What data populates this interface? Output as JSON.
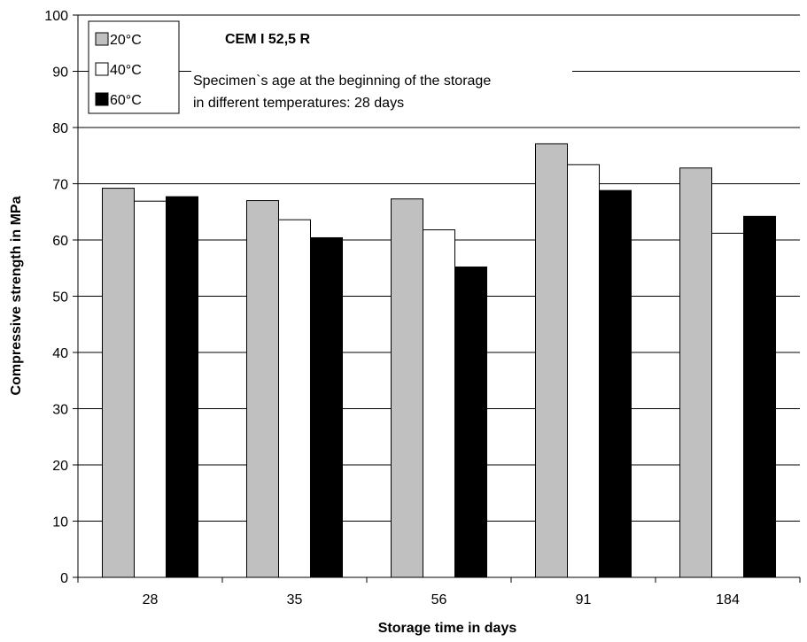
{
  "chart_data": {
    "type": "bar",
    "title": "",
    "xlabel": "Storage time in days",
    "ylabel": "Compressive strength in MPa",
    "ylim": [
      0,
      100
    ],
    "yticks": [
      "0",
      "10",
      "20",
      "30",
      "40",
      "50",
      "60",
      "70",
      "80",
      "90",
      "100"
    ],
    "categories": [
      "28",
      "35",
      "56",
      "91",
      "184"
    ],
    "grid": "horizontal",
    "legend_position": "top-left",
    "series": [
      {
        "name": "20°C",
        "color": "#c0c0c0",
        "values": [
          69.2,
          67.0,
          67.3,
          77.1,
          72.8
        ]
      },
      {
        "name": "40°C",
        "color": "#ffffff",
        "values": [
          66.9,
          63.6,
          61.8,
          73.4,
          61.2
        ]
      },
      {
        "name": "60°C",
        "color": "#000000",
        "values": [
          67.7,
          60.4,
          55.2,
          68.8,
          64.2
        ]
      }
    ],
    "annotations": {
      "cement": "CEM I 52,5 R",
      "line1": "Specimen`s age at the beginning of the storage",
      "line2": "in different temperatures: 28 days"
    }
  }
}
